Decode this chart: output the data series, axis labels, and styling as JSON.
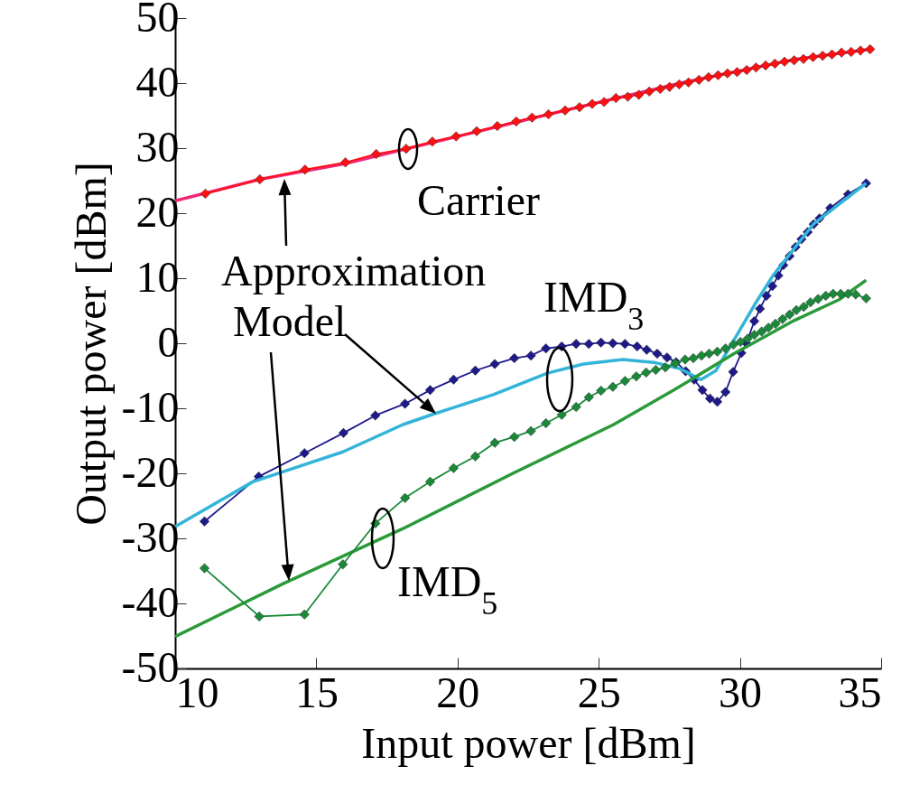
{
  "chart_data": {
    "type": "line",
    "xlabel": "Input power [dBm]",
    "ylabel": "Output power [dBm]",
    "xlim": [
      10,
      35
    ],
    "xticks": [
      10,
      15,
      20,
      25,
      30,
      35
    ],
    "ylim": [
      -50,
      50
    ],
    "yticks": [
      -50,
      -40,
      -30,
      -20,
      -10,
      0,
      10,
      20,
      30,
      40,
      50
    ],
    "grid": false,
    "line_style": "solid",
    "annotations": [
      "Carrier",
      "Approximation",
      "Model",
      "IMD$_{3}$",
      "IMD$_{5}$"
    ],
    "series": [
      {
        "color": "#1e1a8c",
        "marker": "diamond",
        "x": [
          11.04,
          12.96,
          14.58,
          15.96,
          17.09,
          18.14,
          19.03,
          19.86,
          20.63,
          21.32,
          22.01,
          22.6,
          23.13,
          23.69,
          24.2,
          24.65,
          25.08,
          25.5,
          25.93,
          26.36,
          26.7,
          27.07,
          27.42,
          27.74,
          28.08,
          28.38,
          28.67,
          28.94,
          29.2,
          29.49,
          29.76,
          30.05,
          30.23,
          30.51,
          30.71,
          30.94,
          31.15,
          31.36,
          31.54,
          31.76,
          31.97,
          32.18,
          32.4,
          32.61,
          32.82,
          33.2,
          33.83,
          34.47
        ],
        "values": [
          -27.4,
          -20.5,
          -16.9,
          -13.8,
          -11.1,
          -9.3,
          -7.2,
          -5.6,
          -4.2,
          -3.2,
          -2.3,
          -1.9,
          -0.8,
          -0.5,
          -0.1,
          -0.1,
          0.1,
          0,
          -0.1,
          -0.5,
          -1.0,
          -1.6,
          -2.2,
          -2.9,
          -4.3,
          -5.6,
          -7.2,
          -8.5,
          -9.0,
          -7.5,
          -4.4,
          -1.5,
          0,
          3.4,
          5.3,
          7.3,
          8.8,
          10.4,
          12.0,
          13.4,
          14.8,
          16.0,
          17.1,
          18.3,
          19.2,
          20.8,
          22.9,
          24.6
        ]
      },
      {
        "color": "#33b4d8",
        "marker": "none",
        "x": [
          10,
          12.75,
          15.94,
          18.07,
          19.14,
          21.27,
          23.18,
          24.46,
          25.85,
          27.02,
          27.87,
          28.62,
          29.15,
          29.79,
          30.53,
          31.17,
          32.6,
          34.47
        ],
        "values": [
          -28.2,
          -21.3,
          -16.7,
          -12.5,
          -10.9,
          -7.9,
          -4.6,
          -3.2,
          -2.5,
          -3.0,
          -3.9,
          -5.6,
          -4.2,
          0.5,
          6.0,
          10.4,
          18.3,
          24.6
        ]
      },
      {
        "color": "#2a9a3a",
        "marker": "none",
        "x": [
          10,
          13.81,
          18.07,
          22.01,
          25.53,
          27.66,
          29.79,
          31.92,
          33.51,
          34.47
        ],
        "values": [
          -45.1,
          -37.0,
          -28.5,
          -19.9,
          -12.5,
          -7.2,
          -1.6,
          3.5,
          6.7,
          9.7
        ]
      },
      {
        "color": "#1a8a3a",
        "marker": "diamond",
        "x": [
          11.04,
          12.98,
          14.58,
          15.94,
          17.09,
          18.14,
          19.03,
          19.86,
          20.63,
          21.32,
          22.01,
          22.6,
          23.13,
          23.69,
          24.2,
          24.65,
          25.08,
          25.5,
          25.93,
          26.33,
          26.68,
          27.02,
          27.36,
          27.71,
          28.06,
          28.35,
          28.64,
          28.91,
          29.2,
          29.49,
          29.77,
          30.02,
          30.27,
          30.51,
          30.77,
          31.01,
          31.26,
          31.51,
          31.76,
          32.0,
          32.26,
          32.5,
          32.77,
          33.04,
          33.3,
          33.57,
          33.83,
          34.1,
          34.47
        ],
        "values": [
          -34.6,
          -42.0,
          -41.7,
          -34.0,
          -27.7,
          -23.8,
          -21.3,
          -19.2,
          -17.4,
          -15.3,
          -14.4,
          -13.5,
          -12.3,
          -11.0,
          -9.8,
          -8.3,
          -7.3,
          -6.7,
          -5.8,
          -5.1,
          -4.5,
          -4.1,
          -3.7,
          -3.1,
          -2.5,
          -2.3,
          -1.9,
          -1.6,
          -1.3,
          -0.8,
          -0.2,
          0.2,
          0.7,
          1.3,
          1.8,
          2.4,
          3.0,
          3.7,
          4.4,
          5.1,
          5.6,
          6.3,
          6.8,
          7.3,
          7.6,
          7.6,
          7.6,
          7.5,
          6.9
        ]
      },
      {
        "color": "#f0287a",
        "marker": "none",
        "x": [
          10,
          13,
          16,
          20,
          24,
          28,
          32,
          34.6
        ],
        "values": [
          21.9,
          25.2,
          27.6,
          31.8,
          36.0,
          40.1,
          43.7,
          45.2
        ]
      },
      {
        "color": "#ff1010",
        "marker": "diamond",
        "x": [
          11.07,
          13.0,
          14.6,
          16.03,
          17.12,
          18.18,
          19.11,
          19.95,
          20.68,
          21.41,
          22.08,
          22.64,
          23.22,
          23.81,
          24.32,
          24.77,
          25.19,
          25.61,
          26.03,
          26.42,
          26.79,
          27.18,
          27.51,
          27.85,
          28.18,
          28.55,
          28.89,
          29.23,
          29.56,
          29.9,
          30.24,
          30.57,
          30.91,
          31.24,
          31.58,
          31.92,
          32.25,
          32.59,
          32.93,
          33.26,
          33.6,
          33.94,
          34.27,
          34.61
        ],
        "values": [
          23.0,
          25.2,
          26.7,
          27.8,
          29.1,
          29.9,
          31.0,
          31.8,
          32.6,
          33.4,
          34.1,
          34.7,
          35.2,
          35.8,
          36.3,
          36.8,
          37.1,
          37.7,
          37.9,
          38.2,
          38.7,
          39.1,
          39.4,
          39.8,
          40.1,
          40.5,
          40.9,
          41.2,
          41.5,
          41.7,
          42.0,
          42.4,
          42.7,
          43.0,
          43.3,
          43.5,
          43.7,
          44.0,
          44.2,
          44.4,
          44.7,
          44.8,
          45.0,
          45.2
        ]
      }
    ]
  }
}
